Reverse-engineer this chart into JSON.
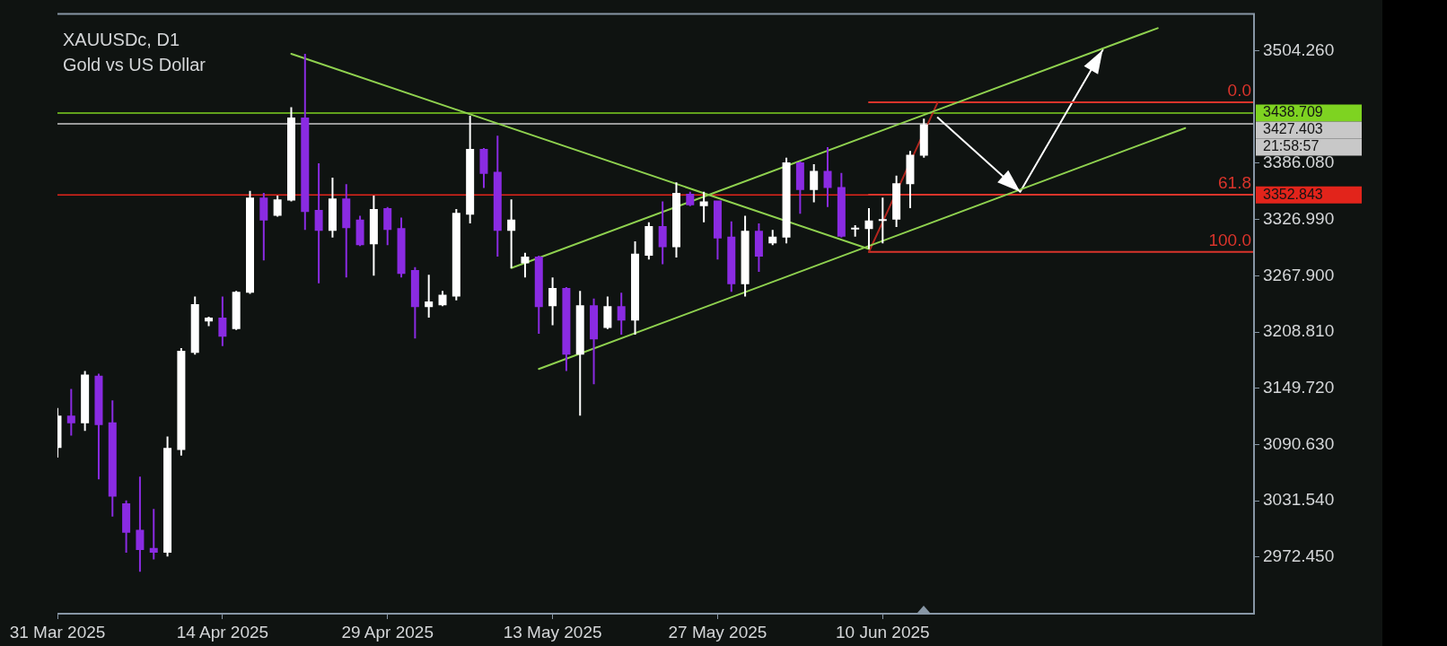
{
  "chart_data": {
    "type": "candlestick",
    "title": "XAUUSDc, D1",
    "subtitle": "Gold vs US Dollar",
    "categories": [
      "31 Mar 2025",
      null,
      null,
      null,
      null,
      null,
      null,
      null,
      null,
      null,
      null,
      null,
      "14 Apr 2025",
      null,
      null,
      null,
      null,
      null,
      null,
      null,
      null,
      null,
      null,
      null,
      "29 Apr 2025",
      null,
      null,
      null,
      null,
      null,
      null,
      null,
      null,
      null,
      null,
      null,
      "13 May 2025",
      null,
      null,
      null,
      null,
      null,
      null,
      null,
      null,
      null,
      null,
      null,
      "27 May 2025",
      null,
      null,
      null,
      null,
      null,
      null,
      null,
      null,
      null,
      null,
      null,
      "10 Jun 2025",
      null,
      null,
      null,
      null,
      null,
      null,
      null,
      null,
      null,
      null,
      null,
      null,
      null,
      null,
      null,
      null,
      null,
      null,
      null,
      null,
      null,
      null,
      null,
      null,
      null,
      null,
      null
    ],
    "ohlc": [
      [
        3087,
        3129,
        3077,
        3121
      ],
      [
        3121,
        3149,
        3100,
        3113
      ],
      [
        3113,
        3168,
        3105,
        3164
      ],
      [
        3163,
        3165,
        3054,
        3111
      ],
      [
        3114,
        3137,
        3015,
        3036
      ],
      [
        3029,
        3032,
        2977,
        2998
      ],
      [
        3001,
        3057,
        2957,
        2980
      ],
      [
        2982,
        3023,
        2970,
        2977
      ],
      [
        2977,
        3099,
        2973,
        3087
      ],
      [
        3085,
        3192,
        3079,
        3189
      ],
      [
        3187,
        3246,
        3185,
        3238
      ],
      [
        3220,
        3225,
        3215,
        3224
      ],
      [
        3224,
        3246,
        3194,
        3204
      ],
      [
        3212,
        3252,
        3211,
        3251
      ],
      [
        3250,
        3357,
        3249,
        3350
      ],
      [
        3350,
        3355,
        3284,
        3326
      ],
      [
        3331,
        3352,
        3330,
        3348
      ],
      [
        3347,
        3445,
        3346,
        3434
      ],
      [
        3434,
        3501,
        3316,
        3335
      ],
      [
        3337,
        3386,
        3260,
        3315
      ],
      [
        3315,
        3371,
        3308,
        3349
      ],
      [
        3349,
        3364,
        3266,
        3318
      ],
      [
        3327,
        3331,
        3299,
        3300
      ],
      [
        3301,
        3352,
        3268,
        3338
      ],
      [
        3339,
        3340,
        3300,
        3316
      ],
      [
        3318,
        3329,
        3266,
        3270
      ],
      [
        3274,
        3277,
        3202,
        3235
      ],
      [
        3235,
        3269,
        3224,
        3241
      ],
      [
        3237,
        3252,
        3236,
        3248
      ],
      [
        3246,
        3338,
        3242,
        3334
      ],
      [
        3332,
        3436,
        3323,
        3401
      ],
      [
        3401,
        3402,
        3360,
        3375
      ],
      [
        3377,
        3415,
        3288,
        3315
      ],
      [
        3315,
        3348,
        3276,
        3327
      ],
      [
        3281,
        3292,
        3266,
        3288
      ],
      [
        3288,
        3289,
        3207,
        3235
      ],
      [
        3236,
        3266,
        3216,
        3255
      ],
      [
        3255,
        3256,
        3168,
        3185
      ],
      [
        3185,
        3252,
        3121,
        3237
      ],
      [
        3237,
        3244,
        3154,
        3201
      ],
      [
        3213,
        3246,
        3212,
        3236
      ],
      [
        3236,
        3250,
        3206,
        3221
      ],
      [
        3221,
        3304,
        3206,
        3291
      ],
      [
        3289,
        3324,
        3285,
        3320
      ],
      [
        3320,
        3346,
        3280,
        3298
      ],
      [
        3298,
        3366,
        3287,
        3355
      ],
      [
        3354,
        3356,
        3341,
        3342
      ],
      [
        3341,
        3356,
        3324,
        3346
      ],
      [
        3347,
        3347,
        3285,
        3307
      ],
      [
        3309,
        3325,
        3251,
        3259
      ],
      [
        3259,
        3331,
        3246,
        3315
      ],
      [
        3315,
        3323,
        3272,
        3288
      ],
      [
        3302,
        3316,
        3300,
        3309
      ],
      [
        3308,
        3392,
        3302,
        3387
      ],
      [
        3387,
        3388,
        3333,
        3358
      ],
      [
        3358,
        3385,
        3345,
        3378
      ],
      [
        3378,
        3403,
        3340,
        3360
      ],
      [
        3361,
        3376,
        3308,
        3309
      ],
      [
        3317,
        3321,
        3309,
        3318
      ],
      [
        3317,
        3339,
        3296,
        3326
      ],
      [
        3326,
        3350,
        3302,
        3327
      ],
      [
        3327,
        3373,
        3319,
        3365
      ],
      [
        3364,
        3399,
        3339,
        3395
      ],
      [
        3394,
        3433,
        3392,
        3427
      ],
      null,
      null,
      null,
      null,
      null,
      null,
      null,
      null,
      null,
      null,
      null,
      null,
      null,
      null,
      null,
      null,
      null,
      null,
      null,
      null,
      null,
      null,
      null,
      null
    ],
    "colors": [
      "#ffffff",
      "#8a2be2",
      "#ffffff",
      "#8a2be2",
      "#8a2be2",
      "#8a2be2",
      "#8a2be2",
      "#8a2be2",
      "#ffffff",
      "#ffffff",
      "#ffffff",
      "#ffffff",
      "#8a2be2",
      "#ffffff",
      "#ffffff",
      "#8a2be2",
      "#ffffff",
      "#ffffff",
      "#8a2be2",
      "#8a2be2",
      "#ffffff",
      "#8a2be2",
      "#8a2be2",
      "#ffffff",
      "#8a2be2",
      "#8a2be2",
      "#8a2be2",
      "#ffffff",
      "#ffffff",
      "#ffffff",
      "#ffffff",
      "#8a2be2",
      "#8a2be2",
      "#ffffff",
      "#ffffff",
      "#8a2be2",
      "#ffffff",
      "#8a2be2",
      "#ffffff",
      "#8a2be2",
      "#ffffff",
      "#8a2be2",
      "#ffffff",
      "#ffffff",
      "#8a2be2",
      "#ffffff",
      "#8a2be2",
      "#ffffff",
      "#8a2be2",
      "#8a2be2",
      "#ffffff",
      "#8a2be2",
      "#ffffff",
      "#ffffff",
      "#8a2be2",
      "#ffffff",
      "#8a2be2",
      "#8a2be2",
      "#ffffff",
      "#ffffff",
      "#ffffff",
      "#ffffff",
      "#ffffff",
      "#ffffff",
      null,
      null,
      null,
      null,
      null,
      null,
      null,
      null,
      null,
      null,
      null,
      null,
      null,
      null,
      null,
      null,
      null,
      null,
      null,
      null,
      null,
      null,
      null,
      null
    ],
    "ylim": [
      2913,
      3543
    ],
    "yticks": [
      {
        "value": 3504.26,
        "label": "3504.260"
      },
      {
        "value": 3386.08,
        "label": "3386.080"
      },
      {
        "value": 3326.99,
        "label": "3326.990"
      },
      {
        "value": 3267.9,
        "label": "3267.900"
      },
      {
        "value": 3208.81,
        "label": "3208.810"
      },
      {
        "value": 3149.72,
        "label": "3149.720"
      },
      {
        "value": 3090.63,
        "label": "3090.630"
      },
      {
        "value": 3031.54,
        "label": "3031.540"
      },
      {
        "value": 2972.45,
        "label": "2972.450"
      }
    ],
    "series": [
      {
        "type": "line",
        "color": "#8fd14f",
        "values": [
          null,
          null,
          null,
          null,
          null,
          null,
          null,
          null,
          null,
          null,
          null,
          null,
          null,
          null,
          null,
          null,
          null,
          3501,
          null,
          null,
          null,
          null,
          null,
          null,
          null,
          null,
          null,
          null,
          null,
          null,
          null,
          null,
          null,
          null,
          null,
          null,
          null,
          null,
          null,
          null,
          null,
          null,
          null,
          null,
          null,
          null,
          null,
          null,
          null,
          null,
          null,
          null,
          null,
          null,
          null,
          null,
          null,
          null,
          null,
          3296,
          null,
          null,
          null,
          null,
          null,
          null,
          null,
          null,
          null,
          null,
          null,
          null,
          null,
          null,
          null,
          null,
          null,
          null,
          null,
          null,
          null,
          null,
          null,
          null,
          null,
          null,
          null,
          null
        ]
      },
      {
        "type": "line",
        "color": "#8fd14f",
        "values": [
          null,
          null,
          null,
          null,
          null,
          null,
          null,
          null,
          null,
          null,
          null,
          null,
          null,
          null,
          null,
          null,
          null,
          null,
          null,
          null,
          null,
          null,
          null,
          null,
          null,
          null,
          null,
          null,
          null,
          null,
          null,
          null,
          null,
          3276,
          null,
          null,
          null,
          null,
          null,
          null,
          null,
          null,
          null,
          null,
          null,
          null,
          null,
          null,
          null,
          null,
          null,
          null,
          null,
          null,
          null,
          null,
          null,
          null,
          null,
          null,
          null,
          null,
          null,
          null,
          null,
          null,
          null,
          null,
          null,
          null,
          null,
          null,
          null,
          null,
          null,
          null,
          null,
          null,
          null,
          null,
          3528,
          null,
          null,
          null,
          null,
          null,
          null,
          null
        ]
      },
      {
        "type": "line",
        "color": "#8fd14f",
        "values": [
          null,
          null,
          null,
          null,
          null,
          null,
          null,
          null,
          null,
          null,
          null,
          null,
          null,
          null,
          null,
          null,
          null,
          null,
          null,
          null,
          null,
          null,
          null,
          null,
          null,
          null,
          null,
          null,
          null,
          null,
          null,
          null,
          null,
          null,
          null,
          3170,
          null,
          null,
          null,
          null,
          null,
          null,
          null,
          null,
          null,
          null,
          null,
          null,
          null,
          null,
          null,
          null,
          null,
          null,
          null,
          null,
          null,
          null,
          null,
          null,
          null,
          null,
          null,
          null,
          null,
          null,
          null,
          null,
          null,
          null,
          null,
          null,
          null,
          null,
          null,
          null,
          null,
          null,
          null,
          null,
          null,
          null,
          3423,
          null,
          null,
          null,
          null,
          null
        ]
      },
      {
        "type": "line",
        "color": "#b3261e",
        "values": [
          null,
          null,
          null,
          null,
          null,
          null,
          null,
          null,
          null,
          null,
          null,
          null,
          null,
          null,
          null,
          null,
          null,
          null,
          null,
          null,
          null,
          null,
          null,
          null,
          null,
          null,
          null,
          null,
          null,
          null,
          null,
          null,
          null,
          null,
          null,
          null,
          null,
          null,
          null,
          null,
          null,
          null,
          null,
          null,
          null,
          null,
          null,
          null,
          null,
          null,
          null,
          null,
          null,
          null,
          null,
          null,
          null,
          null,
          null,
          3293,
          null,
          null,
          null,
          null,
          3450,
          null,
          null,
          null,
          null,
          null,
          null,
          null,
          null,
          null,
          null,
          null,
          null,
          null,
          null,
          null,
          null,
          null,
          null,
          null,
          null,
          null,
          null,
          null
        ]
      },
      {
        "type": "line",
        "name": "0.0",
        "color": "#d9342b",
        "values": [
          null,
          null,
          null,
          null,
          null,
          null,
          null,
          null,
          null,
          null,
          null,
          null,
          null,
          null,
          null,
          null,
          null,
          null,
          null,
          null,
          null,
          null,
          null,
          null,
          null,
          null,
          null,
          null,
          null,
          null,
          null,
          null,
          null,
          null,
          null,
          null,
          null,
          null,
          null,
          null,
          null,
          null,
          null,
          null,
          null,
          null,
          null,
          null,
          null,
          null,
          null,
          null,
          null,
          null,
          null,
          null,
          null,
          null,
          null,
          3450,
          null,
          null,
          null,
          null,
          null,
          null,
          null,
          null,
          null,
          null,
          null,
          null,
          null,
          null,
          null,
          null,
          null,
          null,
          null,
          null,
          null,
          null,
          null,
          null,
          null,
          null,
          null,
          3450
        ]
      },
      {
        "type": "line",
        "name": "61.8",
        "color": "#d9342b",
        "values": [
          null,
          null,
          null,
          null,
          null,
          null,
          null,
          null,
          null,
          null,
          null,
          null,
          null,
          null,
          null,
          null,
          null,
          null,
          null,
          null,
          null,
          null,
          null,
          null,
          null,
          null,
          null,
          null,
          null,
          null,
          null,
          null,
          null,
          null,
          null,
          null,
          null,
          null,
          null,
          null,
          null,
          null,
          null,
          null,
          null,
          null,
          null,
          null,
          null,
          null,
          null,
          null,
          null,
          null,
          null,
          null,
          null,
          null,
          null,
          3353,
          null,
          null,
          null,
          null,
          null,
          null,
          null,
          null,
          null,
          null,
          null,
          null,
          null,
          null,
          null,
          null,
          null,
          null,
          null,
          null,
          null,
          null,
          null,
          null,
          null,
          null,
          null,
          3353
        ]
      },
      {
        "type": "line",
        "name": "100.0",
        "color": "#d9342b",
        "values": [
          null,
          null,
          null,
          null,
          null,
          null,
          null,
          null,
          null,
          null,
          null,
          null,
          null,
          null,
          null,
          null,
          null,
          null,
          null,
          null,
          null,
          null,
          null,
          null,
          null,
          null,
          null,
          null,
          null,
          null,
          null,
          null,
          null,
          null,
          null,
          null,
          null,
          null,
          null,
          null,
          null,
          null,
          null,
          null,
          null,
          null,
          null,
          null,
          null,
          null,
          null,
          null,
          null,
          null,
          null,
          null,
          null,
          null,
          null,
          3293,
          null,
          null,
          null,
          null,
          null,
          null,
          null,
          null,
          null,
          null,
          null,
          null,
          null,
          null,
          null,
          null,
          null,
          null,
          null,
          null,
          null,
          null,
          null,
          null,
          null,
          null,
          null,
          3293
        ]
      },
      {
        "type": "line",
        "color": "#ffffff",
        "values": [
          null,
          null,
          null,
          null,
          null,
          null,
          null,
          null,
          null,
          null,
          null,
          null,
          null,
          null,
          null,
          null,
          null,
          null,
          null,
          null,
          null,
          null,
          null,
          null,
          null,
          null,
          null,
          null,
          null,
          null,
          null,
          null,
          null,
          null,
          null,
          null,
          null,
          null,
          null,
          null,
          null,
          null,
          null,
          null,
          null,
          null,
          null,
          null,
          null,
          null,
          null,
          null,
          null,
          null,
          null,
          null,
          null,
          null,
          null,
          null,
          null,
          null,
          null,
          null,
          3434,
          null,
          null,
          null,
          null,
          null,
          3356,
          null,
          null,
          null,
          null,
          null,
          3505,
          null,
          null,
          null,
          null,
          null,
          null,
          null,
          null,
          null,
          null,
          null
        ]
      }
    ],
    "ref_lines": [
      {
        "axis": "y",
        "value": 3438.709,
        "label": "3438.709",
        "color": "#7ed321"
      },
      {
        "axis": "y",
        "value": 3427.403,
        "label": "3427.403",
        "color": "#c8c8c8"
      },
      {
        "axis": "y",
        "value": 3352.843,
        "label": "3352.843",
        "color": "#e2241b"
      }
    ],
    "annotations": [
      "21:58:57"
    ]
  }
}
